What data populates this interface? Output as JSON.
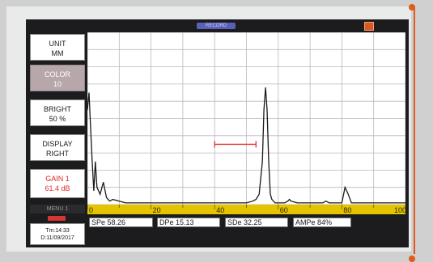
{
  "header": {
    "title": "RECORD"
  },
  "menu": [
    {
      "key": "unit",
      "line1": "UNIT",
      "line2": "MM"
    },
    {
      "key": "color",
      "line1": "COLOR",
      "line2": "10"
    },
    {
      "key": "bright",
      "line1": "BRIGHT",
      "line2": "50  %"
    },
    {
      "key": "display",
      "line1": "DISPLAY",
      "line2": "RIGHT"
    },
    {
      "key": "gain",
      "line1": "GAIN 1",
      "line2": "61.4 dB"
    }
  ],
  "menu_label": "MENU 1",
  "status": {
    "time": "Tm:14:33",
    "date": "D:11/09/2017"
  },
  "readouts": {
    "sp": "SPe  58.26",
    "dp": "DPe  15.13",
    "sd": "SDe  32.25",
    "amp": "AMPe  84%"
  },
  "chart_data": {
    "type": "line",
    "x_ticks": [
      0,
      20,
      40,
      60,
      80,
      100
    ],
    "xlim": [
      0,
      100
    ],
    "ylim": [
      0,
      100
    ],
    "grid": true,
    "series": [
      {
        "color": "#1a1a1a",
        "x": [
          0,
          0.5,
          1,
          1.5,
          2,
          2.5,
          3,
          4,
          5,
          6,
          7,
          8,
          10,
          12,
          15,
          20,
          30,
          40,
          45,
          50,
          52,
          53,
          54,
          55,
          55.5,
          56,
          56.5,
          57,
          57.5,
          58,
          59,
          60,
          62,
          63,
          63.5,
          64,
          66,
          70,
          74,
          75,
          76,
          77,
          80,
          81,
          82,
          83,
          85,
          90,
          95,
          100
        ],
        "y": [
          55,
          65,
          45,
          25,
          8,
          25,
          10,
          6,
          13,
          4,
          2,
          3,
          2,
          1,
          1,
          1,
          1,
          1,
          1,
          1,
          2,
          3,
          6,
          25,
          55,
          68,
          55,
          25,
          6,
          3,
          1,
          1,
          1,
          2,
          3,
          2,
          1,
          1,
          1,
          2,
          1,
          1,
          1,
          10,
          6,
          1,
          1,
          1,
          1,
          1
        ]
      }
    ],
    "annotations": [
      {
        "type": "gate",
        "x_start": 40,
        "x_end": 53,
        "y": 35,
        "color": "#e03030"
      }
    ]
  },
  "colors": {
    "screen": "#1c1c1f",
    "axis_bar": "#e4c400",
    "gate": "#e03030",
    "accent": "#e25a1c"
  }
}
